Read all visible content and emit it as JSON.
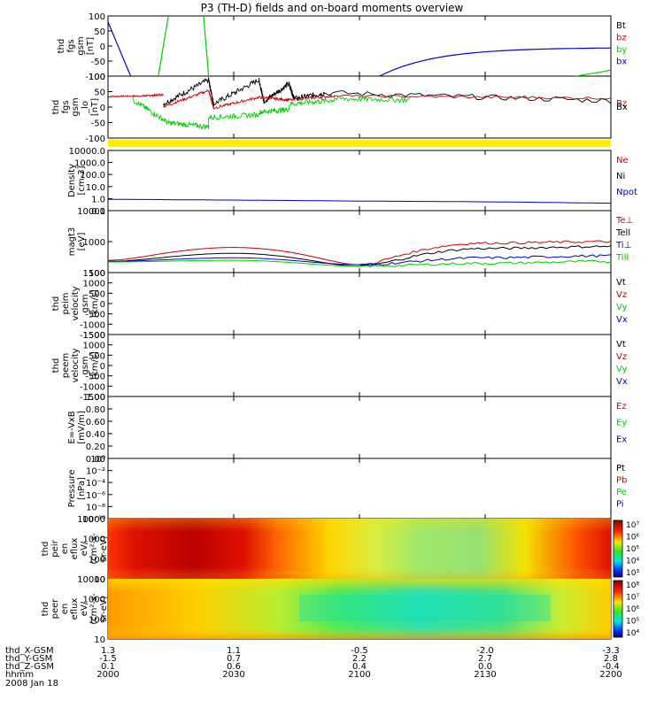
{
  "title": "P3 (TH-D) fields and on-board moments overview",
  "colors": {
    "black": "#000000",
    "red": "#cc0000",
    "green": "#00cc00",
    "blue": "#0000cc",
    "yellow": "#ffee00"
  },
  "panels": [
    {
      "key": "fgs",
      "ylabel": [
        "thd",
        "fgs",
        "gsm",
        "[nT]"
      ],
      "ticks": [
        "100",
        "50",
        "0",
        "-50",
        "-100"
      ],
      "legend": [
        {
          "text": "Bt",
          "color": "black"
        },
        {
          "text": "bz",
          "color": "red"
        },
        {
          "text": "by",
          "color": "green"
        },
        {
          "text": "bx",
          "color": "blue"
        }
      ]
    },
    {
      "key": "fgs_lo",
      "ylabel": [
        "thd",
        "fgs",
        "gsm",
        "_lo",
        "[nT]"
      ],
      "ticks": [
        "100",
        "50",
        "0",
        "-50",
        "-100"
      ],
      "legend": [
        {
          "text": "Bz",
          "color": "red"
        },
        {
          "text": "Bx",
          "color": "black"
        }
      ]
    },
    {
      "key": "density",
      "ylabel": [
        "Density",
        "[cm-3]"
      ],
      "ticks": [
        "10000.0",
        "1000.0",
        "100.0",
        "10.0",
        "1.0",
        "0.1"
      ],
      "legend": [
        {
          "text": "Ne",
          "color": "red"
        },
        {
          "text": "Ni",
          "color": "black"
        },
        {
          "text": "Npot",
          "color": "blue"
        }
      ]
    },
    {
      "key": "temp",
      "ylabel": [
        "magt3",
        "[eV]"
      ],
      "ticks": [
        "10000",
        "1000",
        "100"
      ],
      "legend": [
        {
          "text": "Te⊥",
          "color": "red"
        },
        {
          "text": "Tell",
          "color": "black"
        },
        {
          "text": "Ti⊥",
          "color": "blue"
        },
        {
          "text": "Till",
          "color": "green"
        }
      ]
    },
    {
      "key": "peim",
      "ylabel": [
        "thd",
        "peim",
        "velocity",
        "gsm",
        "[km/s]"
      ],
      "ticks": [
        "1500",
        "1000",
        "500",
        "0",
        "-500",
        "-1000",
        "-1500"
      ],
      "legend": [
        {
          "text": "Vt",
          "color": "black"
        },
        {
          "text": "Vz",
          "color": "red"
        },
        {
          "text": "Vy",
          "color": "green"
        },
        {
          "text": "Vx",
          "color": "blue"
        }
      ]
    },
    {
      "key": "peem",
      "ylabel": [
        "thd",
        "peem",
        "velocity",
        "gsm",
        "[km/s]"
      ],
      "ticks": [
        "1500",
        "1000",
        "500",
        "0",
        "-500",
        "-1000",
        "-1500"
      ],
      "legend": [
        {
          "text": "Vt",
          "color": "black"
        },
        {
          "text": "Vz",
          "color": "red"
        },
        {
          "text": "Vy",
          "color": "green"
        },
        {
          "text": "Vx",
          "color": "blue"
        }
      ]
    },
    {
      "key": "efield",
      "ylabel": [
        "E=-VxB",
        "[mV/m]"
      ],
      "ticks": [
        "1.00",
        "0.80",
        "0.60",
        "0.40",
        "0.20",
        "0.00"
      ],
      "legend": [
        {
          "text": "Ez",
          "color": "red"
        },
        {
          "text": "Ey",
          "color": "green"
        },
        {
          "text": "Ex",
          "color": "blue"
        }
      ]
    },
    {
      "key": "pressure",
      "ylabel": [
        "Pressure",
        "[nPa]"
      ],
      "ticks": [
        "10⁰",
        "10⁻²",
        "10⁻⁴",
        "10⁻⁶",
        "10⁻⁸",
        "10⁻¹⁰"
      ],
      "legend": [
        {
          "text": "Pt",
          "color": "black"
        },
        {
          "text": "Pb",
          "color": "red"
        },
        {
          "text": "Pe",
          "color": "green"
        },
        {
          "text": "Pi",
          "color": "blue"
        }
      ]
    },
    {
      "key": "peir",
      "ylabel": [
        "thd",
        "peir",
        "en",
        "eflux",
        "eV/",
        "(cm²-s-",
        "sr-eV)"
      ],
      "ticks": [
        "10000",
        "1000",
        "100",
        "10"
      ],
      "colorbar": [
        "10⁷",
        "10⁶",
        "10⁵",
        "10⁴",
        "10³"
      ]
    },
    {
      "key": "peer",
      "ylabel": [
        "thd",
        "peer",
        "en",
        "eflux",
        "eV/",
        "(cm²-s-",
        "sr-eV)"
      ],
      "ticks": [
        "10000",
        "1000",
        "100",
        "10"
      ],
      "colorbar": [
        "10⁸",
        "10⁷",
        "10⁶",
        "10⁵",
        "10⁴"
      ]
    }
  ],
  "xaxis": {
    "labels": [
      "thd_X-GSM",
      "thd_Y-GSM",
      "thd_Z-GSM",
      "hhmm",
      "2008 Jan 18"
    ],
    "columns": [
      [
        "1.3",
        "-1.5",
        "0.1",
        "2000"
      ],
      [
        "1.1",
        "0.7",
        "0.6",
        "2030"
      ],
      [
        "-0.5",
        "2.2",
        "0.4",
        "2100"
      ],
      [
        "-2.0",
        "2.7",
        "0.0",
        "2130"
      ],
      [
        "-3.3",
        "2.8",
        "-0.4",
        "2200"
      ]
    ]
  },
  "chart_data": {
    "type": "line",
    "title": "P3 (TH-D) fields and on-board moments overview",
    "x_label": "hhmm",
    "x": [
      "2000",
      "2030",
      "2100",
      "2130",
      "2200"
    ],
    "series": [
      {
        "name": "Npot",
        "panel": "density",
        "values": [
          1.0,
          0.85,
          0.7,
          0.6,
          0.45
        ]
      },
      {
        "name": "Te⊥",
        "panel": "temp",
        "values": [
          250,
          650,
          180,
          900,
          1000
        ]
      },
      {
        "name": "Tell",
        "panel": "temp",
        "values": [
          230,
          420,
          160,
          600,
          700
        ]
      },
      {
        "name": "Ti⊥",
        "panel": "temp",
        "values": [
          230,
          300,
          180,
          300,
          350
        ]
      },
      {
        "name": "Till",
        "panel": "temp",
        "values": [
          220,
          250,
          160,
          200,
          230
        ]
      }
    ]
  }
}
